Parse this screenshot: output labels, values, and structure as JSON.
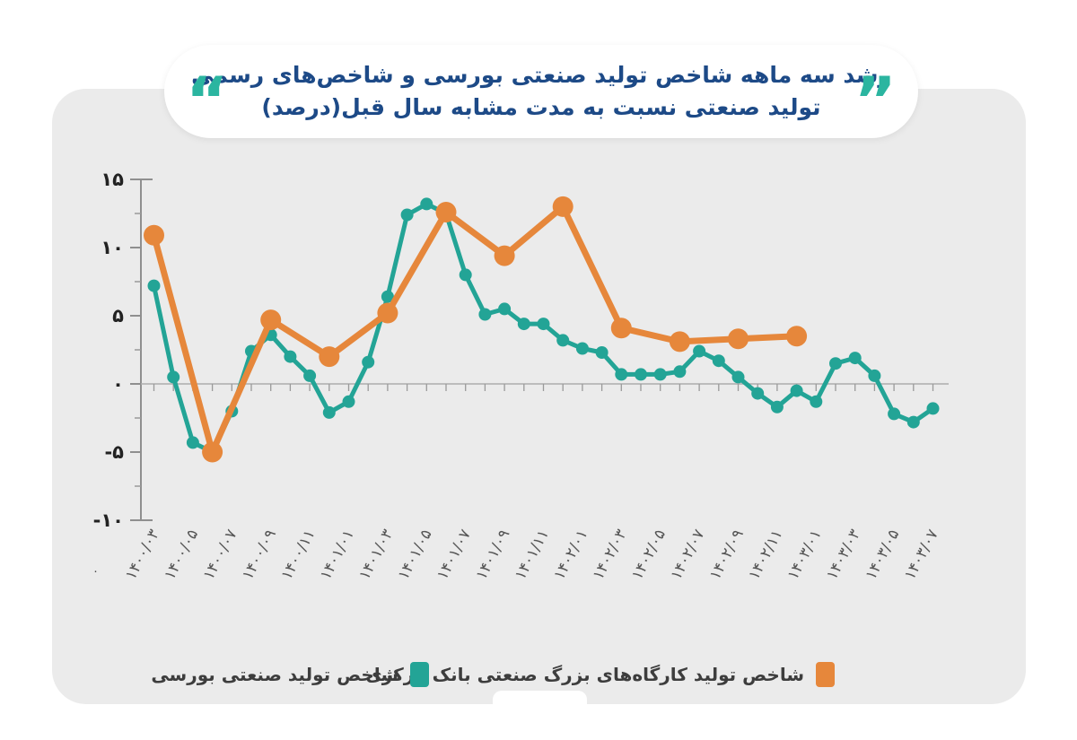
{
  "page": {
    "background": "#ffffff",
    "panel_color": "#ebebeb"
  },
  "title": {
    "line1": "رشد سه ماهه شاخص تولید صنعتی بورسی و شاخص‌های رسمی",
    "line2": "تولید صنعتی نسبت به مدت مشابه سال قبل(درصد)",
    "color": "#1d4a87",
    "open_quote": "“",
    "close_quote": "”",
    "quote_color": "#2bb5a0"
  },
  "legend": [
    {
      "label": "شاخص تولید کارگاه‌های بزرگ صنعتی بانک مرکزی",
      "color": "#e6873b"
    },
    {
      "label": "شاخص تولید صنعتی بورسی",
      "color": "#23a496"
    }
  ],
  "stray_zero_label": "۰",
  "chart_data": {
    "type": "line",
    "title": "رشد سه ماهه شاخص تولید صنعتی بورسی و شاخص‌های رسمی تولید صنعتی نسبت به مدت مشابه سال قبل(درصد)",
    "xlabel": "",
    "ylabel": "درصد",
    "ylim": [
      -10,
      15
    ],
    "grid": false,
    "legend_position": "bottom",
    "y_ticks": [
      {
        "value": 15,
        "label": "۱۵"
      },
      {
        "value": 10,
        "label": "۱۰"
      },
      {
        "value": 5,
        "label": "۵"
      },
      {
        "value": 0,
        "label": "٠"
      },
      {
        "value": -5,
        "label": "-۵"
      },
      {
        "value": -10,
        "label": "-۱۰"
      }
    ],
    "y_minor_tick_step": 2.5,
    "x_ticks": [
      {
        "m": 0,
        "label": "۱۴۰۰/۰۳"
      },
      {
        "m": 2,
        "label": "۱۴۰۰/۰۵"
      },
      {
        "m": 4,
        "label": "۱۴۰۰/۰۷"
      },
      {
        "m": 6,
        "label": "۱۴۰۰/۰۹"
      },
      {
        "m": 8,
        "label": "۱۴۰۰/۱۱"
      },
      {
        "m": 10,
        "label": "۱۴۰۱/۰۱"
      },
      {
        "m": 12,
        "label": "۱۴۰۱/۰۳"
      },
      {
        "m": 14,
        "label": "۱۴۰۱/۰۵"
      },
      {
        "m": 16,
        "label": "۱۴۰۱/۰۷"
      },
      {
        "m": 18,
        "label": "۱۴۰۱/۰۹"
      },
      {
        "m": 20,
        "label": "۱۴۰۱/۱۱"
      },
      {
        "m": 22,
        "label": "۱۴۰۲/۰۱"
      },
      {
        "m": 24,
        "label": "۱۴۰۲/۰۳"
      },
      {
        "m": 26,
        "label": "۱۴۰۲/۰۵"
      },
      {
        "m": 28,
        "label": "۱۴۰۲/۰۷"
      },
      {
        "m": 30,
        "label": "۱۴۰۲/۰۹"
      },
      {
        "m": 32,
        "label": "۱۴۰۲/۱۱"
      },
      {
        "m": 34,
        "label": "۱۴۰۳/۰۱"
      },
      {
        "m": 36,
        "label": "۱۴۰۳/۰۳"
      },
      {
        "m": 38,
        "label": "۱۴۰۳/۰۵"
      },
      {
        "m": 40,
        "label": "۱۴۰۳/۰۷"
      }
    ],
    "series": [
      {
        "name": "شاخص تولید صنعتی بورسی",
        "color": "#23a496",
        "line_width": 5,
        "marker_radius": 7,
        "cadence": "monthly",
        "months": [
          0,
          1,
          2,
          3,
          4,
          5,
          6,
          7,
          8,
          9,
          10,
          11,
          12,
          13,
          14,
          15,
          16,
          17,
          18,
          19,
          20,
          21,
          22,
          23,
          24,
          25,
          26,
          27,
          28,
          29,
          30,
          31,
          32,
          33,
          34,
          35,
          36,
          37,
          38,
          39,
          40
        ],
        "values": [
          7.2,
          0.5,
          -4.3,
          -5.0,
          -2.0,
          2.4,
          3.6,
          2.0,
          0.6,
          -2.1,
          -1.3,
          1.6,
          6.4,
          12.4,
          13.2,
          12.5,
          8.0,
          5.1,
          5.5,
          4.4,
          4.4,
          3.2,
          2.6,
          2.3,
          0.7,
          0.7,
          0.7,
          0.9,
          2.4,
          1.7,
          0.5,
          -0.7,
          -1.7,
          -0.5,
          -1.3,
          1.5,
          1.9,
          0.6,
          -2.2,
          -2.8,
          -1.8
        ]
      },
      {
        "name": "شاخص تولید کارگاه‌های بزرگ صنعتی بانک مرکزی",
        "color": "#e6873b",
        "line_width": 7,
        "marker_radius": 11.5,
        "cadence": "quarterly",
        "months": [
          0,
          3,
          6,
          9,
          12,
          15,
          18,
          21,
          24,
          27,
          30,
          33
        ],
        "values": [
          10.9,
          -5.0,
          4.7,
          2.0,
          5.2,
          12.6,
          9.4,
          13.0,
          4.1,
          3.1,
          3.3,
          3.5
        ]
      }
    ]
  }
}
